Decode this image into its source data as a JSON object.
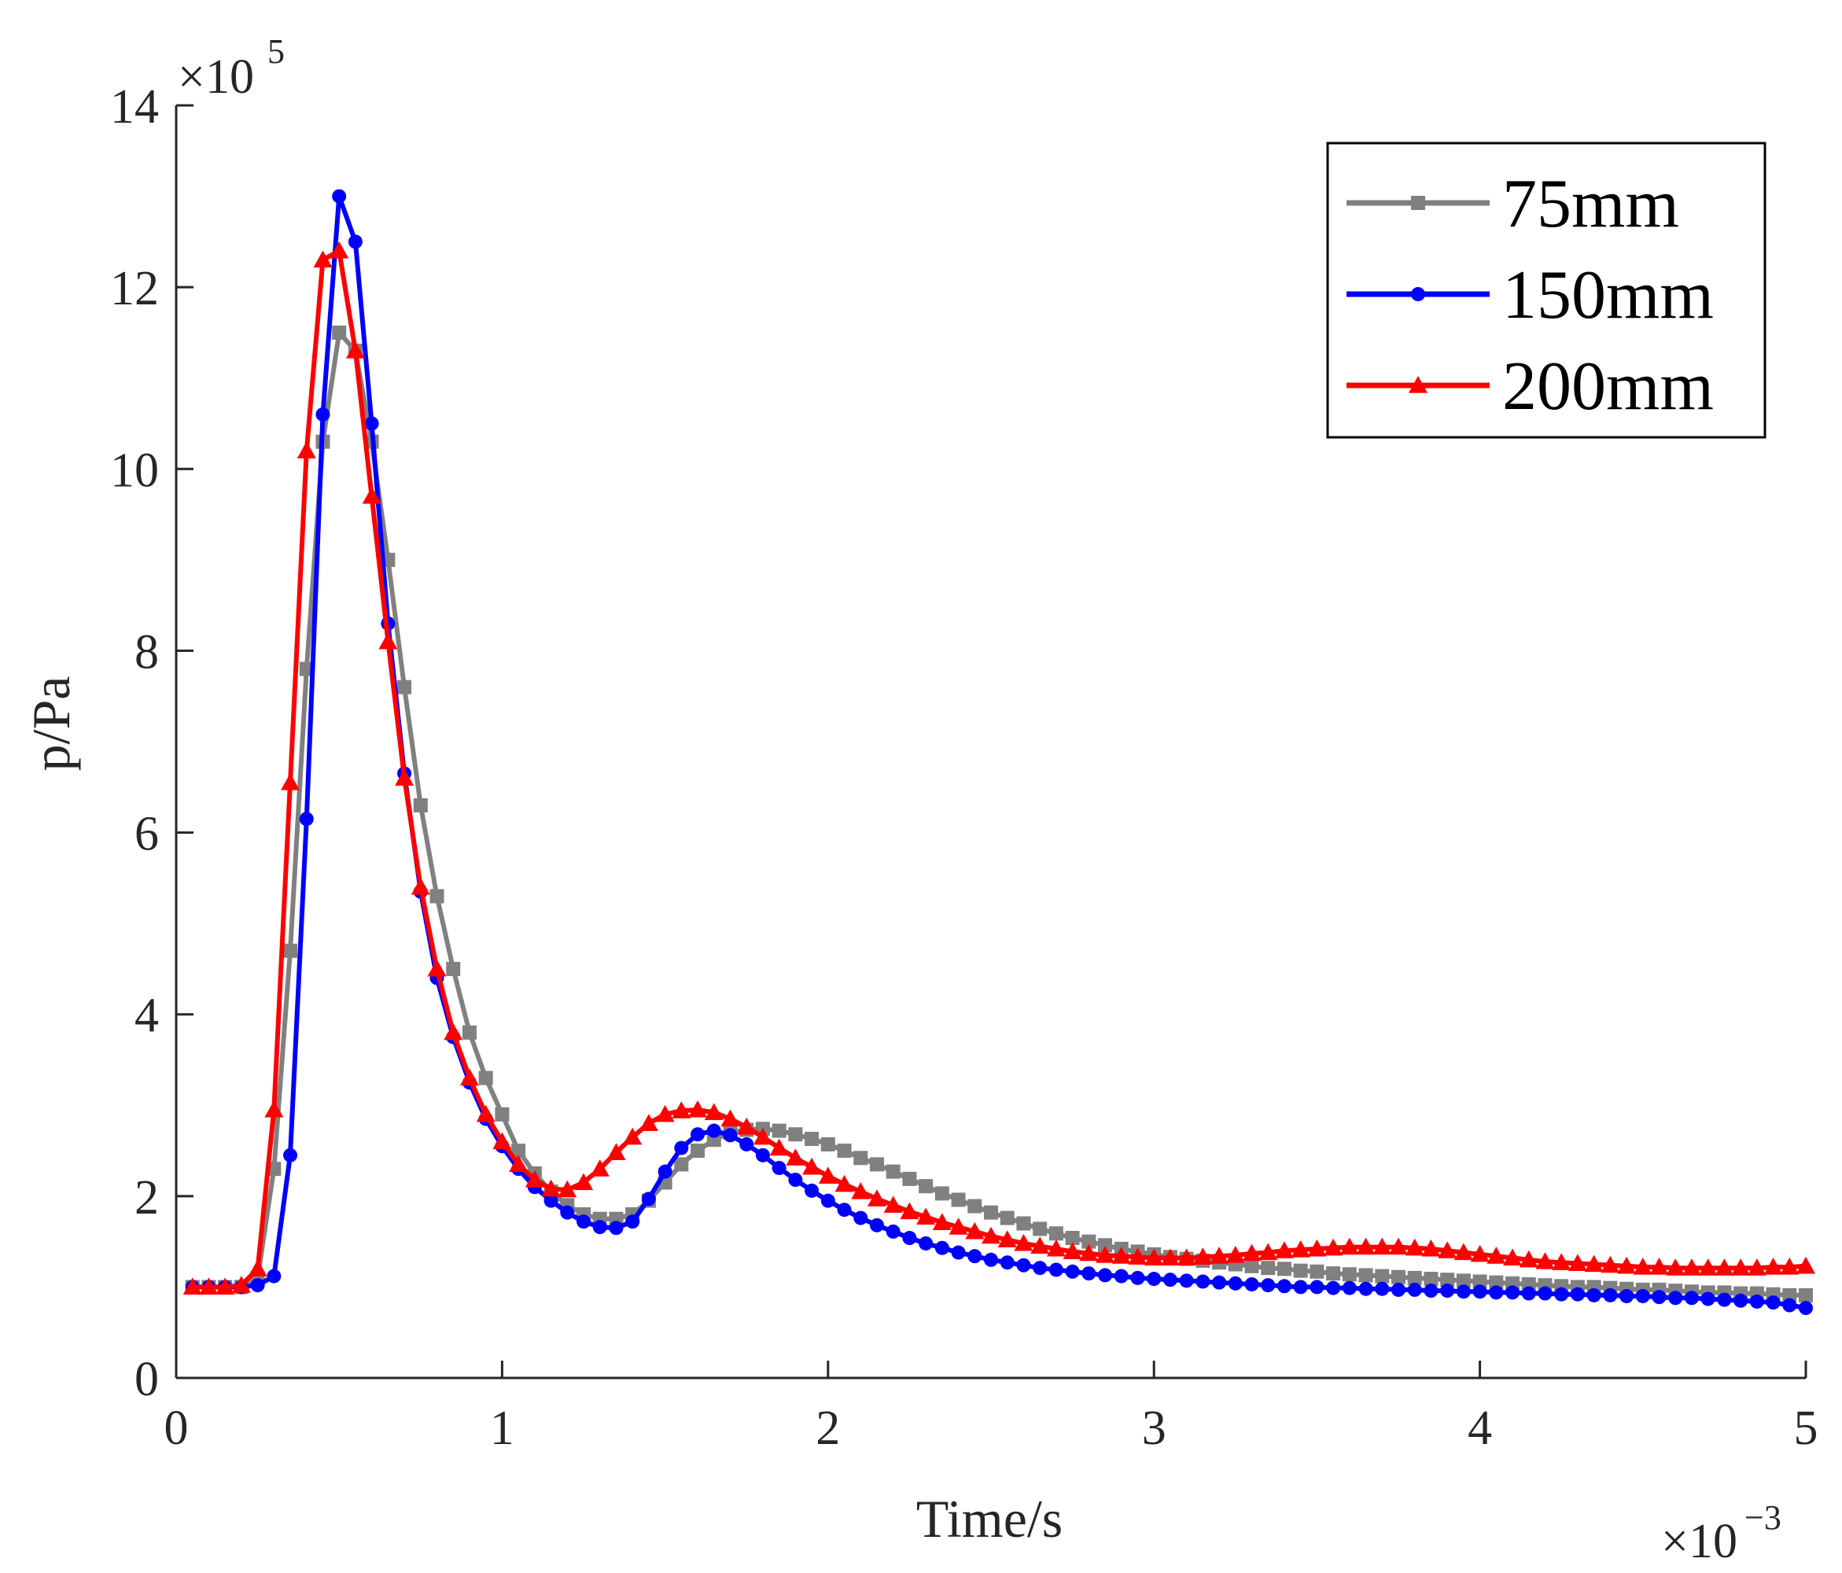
{
  "chart_data": {
    "type": "line",
    "xlabel": "Time/s",
    "ylabel": "p/Pa",
    "x_exponent_label": "×10",
    "x_exponent": "−3",
    "y_exponent_label": "×10",
    "y_exponent": "5",
    "xlim": [
      0,
      5
    ],
    "ylim": [
      0,
      14
    ],
    "x_ticks": [
      "0",
      "1",
      "2",
      "3",
      "4",
      "5"
    ],
    "y_ticks": [
      "0",
      "2",
      "4",
      "6",
      "8",
      "10",
      "12",
      "14"
    ],
    "grid": false,
    "legend_position": "top-right",
    "x_step": 0.05,
    "x_start": 0.05,
    "series": [
      {
        "name": "75mm",
        "color": "#808080",
        "marker": "square",
        "values": [
          1.0,
          1.0,
          1.0,
          1.0,
          1.1,
          2.3,
          4.7,
          7.8,
          10.3,
          11.5,
          11.3,
          10.3,
          9.0,
          7.6,
          6.3,
          5.3,
          4.5,
          3.8,
          3.3,
          2.9,
          2.5,
          2.25,
          2.05,
          1.9,
          1.8,
          1.75,
          1.75,
          1.8,
          1.95,
          2.15,
          2.35,
          2.5,
          2.62,
          2.7,
          2.73,
          2.74,
          2.72,
          2.68,
          2.63,
          2.57,
          2.5,
          2.42,
          2.35,
          2.27,
          2.19,
          2.11,
          2.03,
          1.96,
          1.89,
          1.82,
          1.76,
          1.7,
          1.64,
          1.59,
          1.54,
          1.5,
          1.46,
          1.42,
          1.39,
          1.36,
          1.33,
          1.31,
          1.29,
          1.27,
          1.25,
          1.23,
          1.21,
          1.2,
          1.18,
          1.17,
          1.15,
          1.14,
          1.13,
          1.12,
          1.11,
          1.1,
          1.09,
          1.08,
          1.07,
          1.06,
          1.05,
          1.04,
          1.03,
          1.02,
          1.01,
          1.0,
          1.0,
          0.99,
          0.98,
          0.97,
          0.97,
          0.96,
          0.95,
          0.94,
          0.94,
          0.93,
          0.93,
          0.92,
          0.91,
          0.91
        ]
      },
      {
        "name": "150mm",
        "color": "#0000ff",
        "marker": "circle",
        "values": [
          1.0,
          1.0,
          1.0,
          1.0,
          1.02,
          1.12,
          2.45,
          6.15,
          10.6,
          13.0,
          12.5,
          10.5,
          8.3,
          6.65,
          5.35,
          4.4,
          3.75,
          3.25,
          2.85,
          2.55,
          2.3,
          2.1,
          1.95,
          1.82,
          1.72,
          1.66,
          1.65,
          1.72,
          1.97,
          2.27,
          2.53,
          2.68,
          2.72,
          2.67,
          2.57,
          2.45,
          2.31,
          2.18,
          2.06,
          1.95,
          1.85,
          1.76,
          1.68,
          1.61,
          1.54,
          1.48,
          1.43,
          1.38,
          1.34,
          1.3,
          1.27,
          1.24,
          1.21,
          1.19,
          1.17,
          1.15,
          1.13,
          1.12,
          1.1,
          1.09,
          1.08,
          1.07,
          1.06,
          1.05,
          1.04,
          1.03,
          1.02,
          1.01,
          1.0,
          1.0,
          0.99,
          0.99,
          0.98,
          0.98,
          0.97,
          0.97,
          0.96,
          0.96,
          0.95,
          0.95,
          0.94,
          0.94,
          0.93,
          0.93,
          0.92,
          0.92,
          0.91,
          0.91,
          0.9,
          0.9,
          0.89,
          0.88,
          0.88,
          0.87,
          0.86,
          0.85,
          0.84,
          0.83,
          0.8,
          0.77
        ]
      },
      {
        "name": "200mm",
        "color": "#ff0000",
        "marker": "triangle",
        "values": [
          1.0,
          1.0,
          1.0,
          1.02,
          1.2,
          2.95,
          6.55,
          10.2,
          12.3,
          12.4,
          11.3,
          9.7,
          8.1,
          6.6,
          5.4,
          4.5,
          3.8,
          3.3,
          2.9,
          2.6,
          2.35,
          2.18,
          2.08,
          2.07,
          2.15,
          2.3,
          2.48,
          2.65,
          2.8,
          2.9,
          2.94,
          2.95,
          2.92,
          2.85,
          2.76,
          2.65,
          2.53,
          2.42,
          2.32,
          2.22,
          2.13,
          2.05,
          1.97,
          1.9,
          1.83,
          1.77,
          1.71,
          1.66,
          1.61,
          1.56,
          1.52,
          1.48,
          1.45,
          1.42,
          1.39,
          1.37,
          1.35,
          1.34,
          1.33,
          1.32,
          1.32,
          1.32,
          1.33,
          1.34,
          1.35,
          1.37,
          1.38,
          1.4,
          1.41,
          1.42,
          1.43,
          1.44,
          1.44,
          1.44,
          1.44,
          1.43,
          1.42,
          1.4,
          1.38,
          1.36,
          1.34,
          1.32,
          1.3,
          1.28,
          1.27,
          1.26,
          1.25,
          1.24,
          1.23,
          1.22,
          1.22,
          1.21,
          1.21,
          1.21,
          1.21,
          1.21,
          1.21,
          1.22,
          1.22,
          1.23
        ]
      }
    ]
  }
}
